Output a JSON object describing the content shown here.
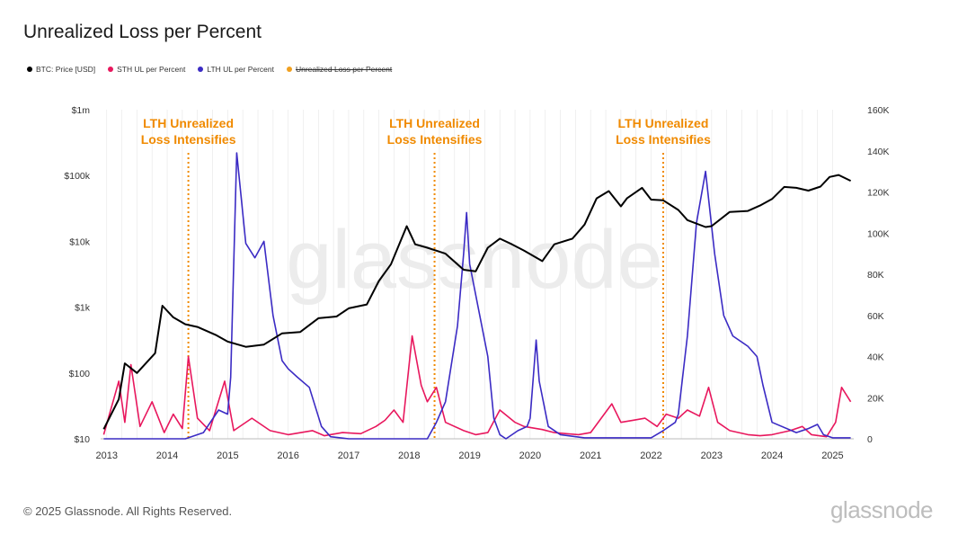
{
  "title": "Unrealized Loss per Percent",
  "legend": [
    {
      "label": "BTC: Price [USD]",
      "color": "#000000",
      "struck": false
    },
    {
      "label": "STH UL per Percent",
      "color": "#e8175d",
      "struck": false
    },
    {
      "label": "LTH UL per Percent",
      "color": "#3b2bc4",
      "struck": false
    },
    {
      "label": "Unrealized Loss per Percent",
      "color": "#f0a020",
      "struck": true
    }
  ],
  "footer": "© 2025 Glassnode. All Rights Reserved.",
  "brand": "glassnode",
  "watermark": "glassnode",
  "colors": {
    "price": "#000000",
    "sth": "#e8175d",
    "lth": "#3b2bc4",
    "annotation": "#f08a00",
    "grid": "#e9e9e9"
  },
  "chart_data": {
    "type": "line",
    "title": "Unrealized Loss per Percent",
    "x_ticks": [
      "2013",
      "2014",
      "2015",
      "2016",
      "2017",
      "2018",
      "2019",
      "2020",
      "2021",
      "2022",
      "2023",
      "2024",
      "2025"
    ],
    "xlim": [
      2012.9,
      2025.35
    ],
    "y_left": {
      "scale": "log",
      "ticks": [
        "$10",
        "$100",
        "$1k",
        "$10k",
        "$100k",
        "$1m"
      ],
      "range": [
        10,
        1000000
      ]
    },
    "y_right": {
      "scale": "linear",
      "ticks": [
        "0",
        "20K",
        "40K",
        "60K",
        "80K",
        "100K",
        "120K",
        "140K",
        "160K"
      ],
      "range": [
        0,
        160000
      ]
    },
    "grid": "vertical-only",
    "annotations": [
      {
        "x": 2014.35,
        "text_line1": "LTH Unrealized",
        "text_line2": "Loss Intensifies"
      },
      {
        "x": 2018.42,
        "text_line1": "LTH Unrealized",
        "text_line2": "Loss Intensifies"
      },
      {
        "x": 2022.2,
        "text_line1": "LTH Unrealized",
        "text_line2": "Loss Intensifies"
      }
    ],
    "series": [
      {
        "name": "BTC: Price [USD]",
        "axis": "left",
        "x": [
          2012.95,
          2013.2,
          2013.3,
          2013.5,
          2013.8,
          2013.92,
          2014.1,
          2014.3,
          2014.5,
          2014.8,
          2015.0,
          2015.3,
          2015.6,
          2015.9,
          2016.2,
          2016.5,
          2016.8,
          2017.0,
          2017.3,
          2017.5,
          2017.7,
          2017.96,
          2018.1,
          2018.3,
          2018.6,
          2018.9,
          2019.1,
          2019.3,
          2019.5,
          2019.7,
          2019.9,
          2020.2,
          2020.4,
          2020.7,
          2020.9,
          2021.1,
          2021.3,
          2021.5,
          2021.6,
          2021.85,
          2022.0,
          2022.2,
          2022.45,
          2022.6,
          2022.9,
          2023.0,
          2023.3,
          2023.6,
          2023.8,
          2024.0,
          2024.2,
          2024.4,
          2024.6,
          2024.8,
          2024.95,
          2025.1,
          2025.3
        ],
        "y": [
          14,
          40,
          140,
          100,
          200,
          1050,
          700,
          550,
          500,
          380,
          300,
          250,
          270,
          400,
          420,
          680,
          720,
          960,
          1100,
          2500,
          4500,
          17000,
          9000,
          8000,
          6500,
          3700,
          3500,
          8000,
          11000,
          9000,
          7200,
          5000,
          9000,
          11000,
          18000,
          45000,
          58000,
          34000,
          45000,
          65000,
          43000,
          42000,
          30000,
          21000,
          16500,
          17000,
          28000,
          29000,
          35000,
          44000,
          67000,
          65000,
          59000,
          68000,
          95000,
          102000,
          83000
        ]
      },
      {
        "name": "STH UL per Percent",
        "axis": "right",
        "x": [
          2012.95,
          2013.2,
          2013.3,
          2013.4,
          2013.55,
          2013.75,
          2013.95,
          2014.1,
          2014.25,
          2014.35,
          2014.5,
          2014.7,
          2014.95,
          2015.1,
          2015.4,
          2015.7,
          2016.0,
          2016.4,
          2016.6,
          2016.9,
          2017.2,
          2017.45,
          2017.6,
          2017.75,
          2017.9,
          2018.05,
          2018.2,
          2018.3,
          2018.45,
          2018.6,
          2018.9,
          2019.1,
          2019.3,
          2019.5,
          2019.75,
          2019.9,
          2020.2,
          2020.4,
          2020.6,
          2020.8,
          2021.0,
          2021.35,
          2021.5,
          2021.7,
          2021.9,
          2022.1,
          2022.25,
          2022.45,
          2022.6,
          2022.8,
          2022.95,
          2023.1,
          2023.3,
          2023.6,
          2023.8,
          2024.0,
          2024.3,
          2024.5,
          2024.65,
          2024.9,
          2025.05,
          2025.15,
          2025.3
        ],
        "y": [
          2000,
          28000,
          8000,
          36000,
          6000,
          18000,
          3000,
          12000,
          5000,
          40000,
          10000,
          4000,
          28000,
          4000,
          10000,
          4000,
          2000,
          4000,
          1500,
          3000,
          2500,
          6000,
          9000,
          14000,
          8000,
          50000,
          26000,
          18000,
          25000,
          8000,
          4000,
          2000,
          3000,
          14000,
          8000,
          6000,
          4500,
          3000,
          2500,
          2000,
          3000,
          17000,
          8000,
          9000,
          10000,
          6000,
          12000,
          10000,
          14000,
          11000,
          25000,
          8000,
          4000,
          2000,
          1500,
          2000,
          4000,
          6000,
          2000,
          1000,
          8000,
          25000,
          18000
        ]
      },
      {
        "name": "LTH UL per Percent",
        "axis": "right",
        "x": [
          2012.95,
          2013.6,
          2014.2,
          2014.3,
          2014.6,
          2014.85,
          2015.0,
          2015.05,
          2015.15,
          2015.3,
          2015.45,
          2015.6,
          2015.75,
          2015.9,
          2016.0,
          2016.15,
          2016.35,
          2016.55,
          2016.7,
          2017.0,
          2017.5,
          2018.0,
          2018.3,
          2018.45,
          2018.6,
          2018.8,
          2018.9,
          2018.95,
          2019.0,
          2019.3,
          2019.4,
          2019.5,
          2019.6,
          2019.8,
          2019.95,
          2020.0,
          2020.1,
          2020.15,
          2020.3,
          2020.5,
          2020.9,
          2021.5,
          2022.0,
          2022.2,
          2022.4,
          2022.45,
          2022.6,
          2022.75,
          2022.9,
          2023.05,
          2023.2,
          2023.35,
          2023.6,
          2023.75,
          2023.85,
          2024.0,
          2024.4,
          2024.6,
          2024.75,
          2024.85,
          2025.0,
          2025.3
        ],
        "y": [
          0,
          0,
          0,
          0,
          3000,
          14000,
          12000,
          30000,
          139000,
          95000,
          88000,
          96000,
          60000,
          38000,
          34000,
          30000,
          25000,
          6000,
          1000,
          0,
          0,
          0,
          0,
          8000,
          18000,
          55000,
          90000,
          110000,
          85000,
          40000,
          10000,
          2000,
          0,
          4000,
          6000,
          10000,
          48000,
          28000,
          6000,
          2000,
          500,
          500,
          500,
          4000,
          8000,
          12000,
          50000,
          105000,
          130000,
          90000,
          60000,
          50000,
          45000,
          40000,
          26000,
          8000,
          3000,
          5000,
          7000,
          2000,
          500,
          500
        ]
      }
    ]
  }
}
